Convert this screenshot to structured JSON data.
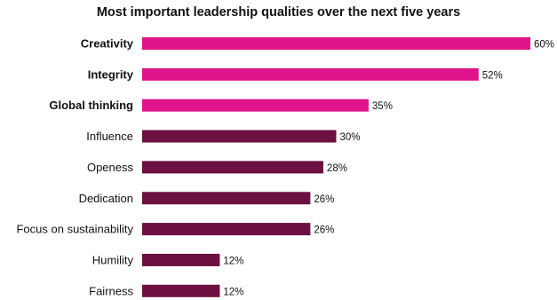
{
  "chart_data": {
    "type": "bar",
    "orientation": "horizontal",
    "title": "Most important leadership qualities over the next five years",
    "categories": [
      "Creativity",
      "Integrity",
      "Global thinking",
      "Influence",
      "Openess",
      "Dedication",
      "Focus on sustainability",
      "Humility",
      "Fairness"
    ],
    "values": [
      60,
      52,
      35,
      30,
      28,
      26,
      26,
      12,
      12
    ],
    "data_labels": [
      "60%",
      "52%",
      "35%",
      "30%",
      "28%",
      "26%",
      "26%",
      "12%",
      "12%"
    ],
    "emphasized": [
      true,
      true,
      true,
      false,
      false,
      false,
      false,
      false,
      false
    ],
    "unit": "%",
    "xlim": [
      0,
      60
    ],
    "grid": false,
    "legend": "none",
    "colors": {
      "highlight": "#e0148a",
      "default": "#6b1040"
    }
  }
}
